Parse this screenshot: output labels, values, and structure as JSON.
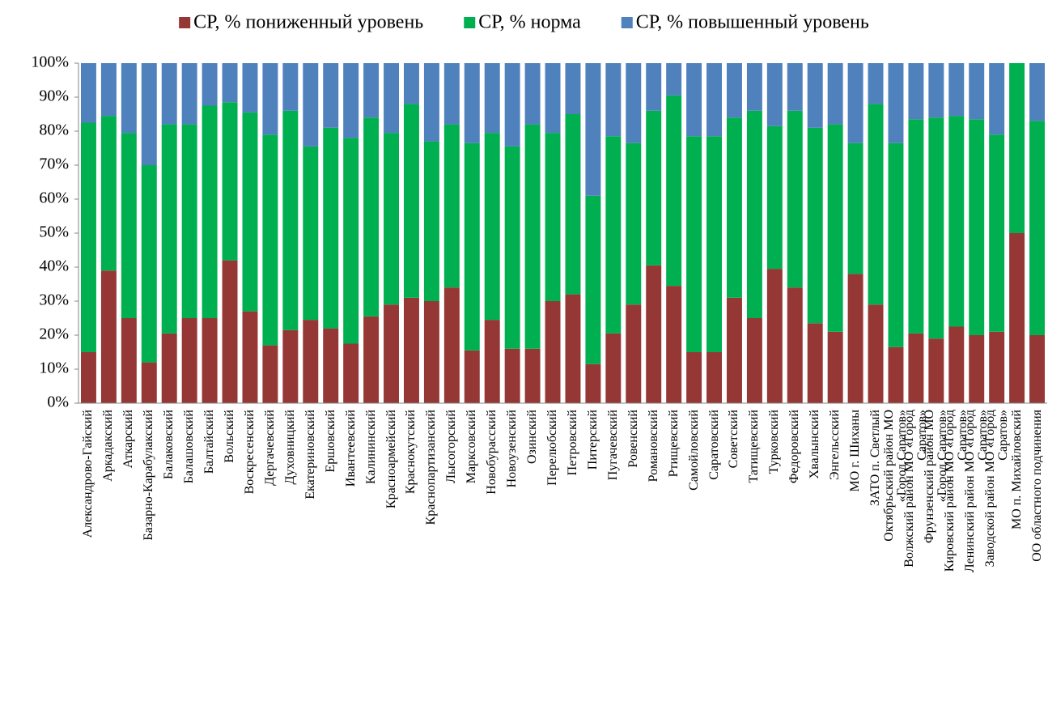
{
  "chart_data": {
    "type": "stacked_bar_100",
    "categories": [
      "Александрово-Гайский",
      "Аркадакский",
      "Аткарский",
      "Базарно-Карабулакский",
      "Балаковский",
      "Балашовский",
      "Балтайский",
      "Вольский",
      "Воскресенский",
      "Дергачевский",
      "Духовницкий",
      "Екатериновский",
      "Ершовский",
      "Ивантеевский",
      "Калининский",
      "Красноармейский",
      "Краснокутский",
      "Краснопартизанский",
      "Лысогорский",
      "Марксовский",
      "Новобурасский",
      "Новоузенский",
      "Озинский",
      "Перелюбский",
      "Петровский",
      "Питерский",
      "Пугачевский",
      "Ровенский",
      "Романовский",
      "Ртищевский",
      "Самойловский",
      "Саратовский",
      "Советский",
      "Татищевский",
      "Турковский",
      "Федоровский",
      "Хвалынский",
      "Энгельсский",
      "МО г. Шиханы",
      "ЗАТО п. Светлый",
      "Октябрьский район МО «Город Саратов»",
      "Волжский район МО «Город Саратов»",
      "Фрунзенский район МО «Город Саратов»",
      "Кировский район МО «Город Саратов»",
      "Ленинский район МО «Город Саратов»",
      "Заводской район МО «Город Саратов»",
      "МО п. Михайловский",
      "ОО областного подчинения"
    ],
    "series": [
      {
        "name": "СР, % пониженный уровень",
        "color": "#953735",
        "values": [
          15,
          39,
          25,
          12,
          20.5,
          25,
          25,
          42,
          27,
          17,
          21.5,
          24.5,
          22,
          17.5,
          25.5,
          29,
          31,
          30,
          34,
          15.5,
          24.5,
          16,
          16,
          30,
          32,
          11.5,
          20.5,
          29,
          40.5,
          34.5,
          15,
          15,
          31,
          25,
          39.5,
          34,
          23.5,
          21,
          38,
          29,
          16.5,
          20.5,
          19,
          22.5,
          20,
          21,
          50,
          20
        ]
      },
      {
        "name": "СР, % норма",
        "color": "#00b050",
        "values": [
          67.5,
          45.5,
          54.5,
          58,
          61.5,
          57,
          62.5,
          46.5,
          58.5,
          62,
          64.5,
          51,
          59,
          60.5,
          58.5,
          50.5,
          57,
          47,
          48,
          61,
          55,
          59.5,
          66,
          49.5,
          53,
          49.5,
          58,
          47.5,
          45.5,
          56,
          63.5,
          63.5,
          53,
          61,
          42,
          52,
          57.5,
          61,
          38.5,
          59,
          60,
          63,
          65,
          62,
          63.5,
          58,
          50,
          63
        ]
      },
      {
        "name": "СР, % повышенный уровень",
        "color": "#4f81bd",
        "values": [
          17.5,
          15.5,
          20.5,
          30,
          18,
          18,
          12.5,
          11.5,
          14.5,
          21,
          14,
          24.5,
          19,
          22,
          16,
          20.5,
          12,
          23,
          18,
          23.5,
          20.5,
          24.5,
          18,
          20.5,
          15,
          39,
          21.5,
          23.5,
          14,
          9.5,
          21.5,
          21.5,
          16,
          14,
          18.5,
          14,
          19,
          18,
          23.5,
          12,
          23.5,
          16.5,
          16,
          15.5,
          16.5,
          21,
          0,
          17
        ]
      }
    ],
    "ylim": [
      0,
      100
    ],
    "yticks": [
      {
        "value": 0,
        "label": "0%"
      },
      {
        "value": 10,
        "label": "10%"
      },
      {
        "value": 20,
        "label": "20%"
      },
      {
        "value": 30,
        "label": "30%"
      },
      {
        "value": 40,
        "label": "40%"
      },
      {
        "value": 50,
        "label": "50%"
      },
      {
        "value": 60,
        "label": "60%"
      },
      {
        "value": 70,
        "label": "70%"
      },
      {
        "value": 80,
        "label": "80%"
      },
      {
        "value": 90,
        "label": "90%"
      },
      {
        "value": 100,
        "label": "100%"
      }
    ],
    "grid": false,
    "legend": "top"
  }
}
